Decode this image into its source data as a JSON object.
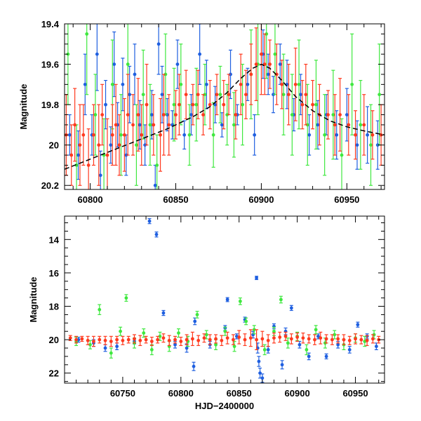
{
  "colors": {
    "blue": "#1f5fe0",
    "green": "#3fe83f",
    "red": "#ff3a1f",
    "model": "#000000",
    "frame": "#000000"
  },
  "chart_data": [
    {
      "type": "scatter",
      "panel": "top",
      "title": "",
      "xlabel": "",
      "ylabel": "Magnitude",
      "xlim": [
        60785,
        60972
      ],
      "ylim": [
        20.22,
        19.4
      ],
      "y_inverted": true,
      "xticks": [
        60800,
        60850,
        60900,
        60950
      ],
      "xtick_labels": [
        "60800",
        "60850",
        "60900",
        "60950"
      ],
      "yticks": [
        19.4,
        19.6,
        19.8,
        20.0,
        20.2
      ],
      "ytick_labels": [
        "19.4",
        "19.6",
        "19.8",
        "20",
        "20.2"
      ],
      "error_bars": true,
      "series": [
        {
          "name": "blue",
          "color": "#1f5fe0",
          "x": [
            60788,
            60793,
            60797,
            60801,
            60804,
            60806,
            60809,
            60812,
            60814,
            60816,
            60819,
            60821,
            60823,
            60826,
            60829,
            60832,
            60836,
            60838,
            60840,
            60842,
            60845,
            60848,
            60851,
            60855,
            60859,
            60864,
            60868,
            60873,
            60877,
            60882,
            60886,
            60892,
            60896,
            60901,
            60904,
            60907,
            60911,
            60915,
            60919,
            60923,
            60928,
            60933,
            60938,
            60944,
            60950,
            60956,
            60962,
            60968
          ],
          "y": [
            19.95,
            20.05,
            19.7,
            19.95,
            19.55,
            20.15,
            19.8,
            20.0,
            19.6,
            19.9,
            19.7,
            20.05,
            19.75,
            19.65,
            19.9,
            20.0,
            19.85,
            20.2,
            19.5,
            19.75,
            19.85,
            19.9,
            19.6,
            19.95,
            19.85,
            19.55,
            19.7,
            19.8,
            19.9,
            19.65,
            19.85,
            19.7,
            19.95,
            19.55,
            19.65,
            19.75,
            19.6,
            19.7,
            19.85,
            19.75,
            19.95,
            19.9,
            19.85,
            19.95,
            19.85,
            20.0,
            19.95,
            20.0
          ],
          "err": [
            0.1,
            0.12,
            0.15,
            0.1,
            0.18,
            0.12,
            0.12,
            0.09,
            0.16,
            0.11,
            0.13,
            0.1,
            0.14,
            0.15,
            0.12,
            0.1,
            0.12,
            0.1,
            0.15,
            0.14,
            0.08,
            0.07,
            0.12,
            0.07,
            0.1,
            0.15,
            0.12,
            0.09,
            0.06,
            0.12,
            0.05,
            0.08,
            0.1,
            0.12,
            0.1,
            0.09,
            0.1,
            0.12,
            0.08,
            0.1,
            0.1,
            0.12,
            0.1,
            0.12,
            0.13,
            0.12,
            0.14,
            0.12
          ]
        },
        {
          "name": "green",
          "color": "#3fe83f",
          "x": [
            60787,
            60792,
            60798,
            60803,
            60808,
            60813,
            60818,
            60822,
            60827,
            60831,
            60835,
            60839,
            60844,
            60849,
            60853,
            60858,
            60862,
            60867,
            60872,
            60876,
            60880,
            60884,
            60889,
            60894,
            60898,
            60903,
            60908,
            60913,
            60918,
            60922,
            60927,
            60932,
            60937,
            60942,
            60947,
            60953,
            60958,
            60964,
            60969
          ],
          "y": [
            19.55,
            20.1,
            19.45,
            19.85,
            20.05,
            19.7,
            19.95,
            19.6,
            20.0,
            19.75,
            19.9,
            20.1,
            19.65,
            19.8,
            19.7,
            19.95,
            19.8,
            19.75,
            19.95,
            19.75,
            19.85,
            19.9,
            19.8,
            19.65,
            19.6,
            19.45,
            19.55,
            19.75,
            19.85,
            19.7,
            19.9,
            19.8,
            19.95,
            19.85,
            20.05,
            19.7,
            19.9,
            20.0,
            19.75
          ],
          "err": [
            0.25,
            0.2,
            0.3,
            0.2,
            0.18,
            0.22,
            0.2,
            0.25,
            0.2,
            0.22,
            0.2,
            0.15,
            0.2,
            0.18,
            0.2,
            0.15,
            0.18,
            0.15,
            0.16,
            0.14,
            0.15,
            0.16,
            0.2,
            0.22,
            0.25,
            0.22,
            0.2,
            0.2,
            0.2,
            0.22,
            0.2,
            0.22,
            0.2,
            0.22,
            0.18,
            0.25,
            0.22,
            0.2,
            0.25
          ]
        },
        {
          "name": "red",
          "color": "#ff3a1f",
          "x": [
            60786,
            60789,
            60791,
            60794,
            60796,
            60799,
            60802,
            60805,
            60807,
            60810,
            60813,
            60815,
            60817,
            60820,
            60822,
            60825,
            60828,
            60830,
            60833,
            60837,
            60841,
            60843,
            60846,
            60850,
            60852,
            60856,
            60860,
            60863,
            60866,
            60870,
            60874,
            60878,
            60881,
            60885,
            60888,
            60891,
            60894,
            60897,
            60900,
            60902,
            60905,
            60909,
            60912,
            60916,
            60920,
            60924,
            60926,
            60930,
            60934,
            60939,
            60943,
            60946,
            60951,
            60955,
            60960,
            60965,
            60970
          ],
          "y": [
            19.95,
            20.05,
            19.9,
            20.0,
            19.95,
            20.1,
            19.95,
            20.0,
            19.85,
            20.05,
            19.95,
            19.9,
            20.0,
            19.95,
            19.85,
            19.9,
            19.85,
            19.95,
            19.8,
            19.9,
            19.95,
            19.85,
            19.9,
            19.85,
            19.8,
            19.75,
            19.8,
            19.75,
            19.85,
            19.8,
            19.75,
            19.8,
            19.75,
            19.85,
            19.7,
            19.75,
            19.65,
            19.6,
            19.55,
            19.6,
            19.6,
            19.65,
            19.7,
            19.75,
            19.7,
            19.8,
            19.75,
            19.8,
            19.85,
            19.85,
            19.9,
            19.85,
            19.9,
            19.95,
            19.9,
            19.95,
            19.95
          ],
          "err": [
            0.2,
            0.15,
            0.18,
            0.2,
            0.15,
            0.18,
            0.15,
            0.2,
            0.15,
            0.18,
            0.15,
            0.2,
            0.15,
            0.18,
            0.2,
            0.15,
            0.18,
            0.15,
            0.2,
            0.15,
            0.18,
            0.2,
            0.15,
            0.12,
            0.15,
            0.12,
            0.1,
            0.12,
            0.1,
            0.12,
            0.1,
            0.12,
            0.1,
            0.12,
            0.15,
            0.12,
            0.15,
            0.18,
            0.2,
            0.15,
            0.12,
            0.15,
            0.12,
            0.15,
            0.18,
            0.12,
            0.15,
            0.12,
            0.15,
            0.12,
            0.15,
            0.18,
            0.15,
            0.12,
            0.15,
            0.12,
            0.15
          ]
        }
      ],
      "model_curve": {
        "name": "model",
        "color": "#000000",
        "style": "dashed",
        "x": [
          60785,
          60800,
          60815,
          60830,
          60845,
          60860,
          60870,
          60880,
          60888,
          60895,
          60900,
          60905,
          60912,
          60920,
          60930,
          60940,
          60950,
          60960,
          60972
        ],
        "y": [
          20.12,
          20.07,
          20.02,
          19.97,
          19.92,
          19.86,
          19.81,
          19.74,
          19.67,
          19.62,
          19.6,
          19.62,
          19.68,
          19.76,
          19.83,
          19.88,
          19.91,
          19.93,
          19.95
        ]
      }
    },
    {
      "type": "scatter",
      "panel": "bottom",
      "title": "",
      "xlabel": "HJD−2400000",
      "ylabel": "Magnitude",
      "xlim": [
        60700,
        60975
      ],
      "ylim": [
        22.6,
        12.6
      ],
      "y_inverted": true,
      "xticks": [
        60750,
        60800,
        60850,
        60900,
        60950
      ],
      "xtick_labels": [
        "60750",
        "60800",
        "60850",
        "60900",
        "60950"
      ],
      "yticks": [
        14,
        16,
        18,
        20,
        22
      ],
      "ytick_labels": [
        "14",
        "16",
        "18",
        "20",
        "22"
      ],
      "error_bars": true,
      "series": [
        {
          "name": "blue",
          "color": "#1f5fe0",
          "x": [
            60712,
            60725,
            60735,
            60745,
            60760,
            60773,
            60779,
            60785,
            60795,
            60805,
            60811,
            60812,
            60825,
            60838,
            60840,
            60848,
            60855,
            60862,
            60865,
            60866,
            60867,
            60868,
            60870,
            60875,
            60880,
            60887,
            60890,
            60895,
            60902,
            60910,
            60918,
            60925,
            60935,
            60945,
            60952,
            60960,
            60968
          ],
          "y": [
            20.0,
            20.2,
            20.5,
            20.4,
            20.1,
            12.9,
            13.7,
            18.4,
            20.3,
            20.5,
            21.6,
            18.9,
            20.3,
            19.3,
            17.6,
            19.8,
            18.8,
            19.7,
            16.3,
            20.5,
            21.3,
            22.0,
            22.3,
            20.6,
            19.2,
            21.5,
            19.5,
            18.1,
            20.3,
            21.0,
            19.8,
            21.0,
            20.3,
            20.6,
            19.1,
            19.8,
            20.4
          ],
          "err": [
            0.15,
            0.2,
            0.2,
            0.2,
            0.15,
            0.15,
            0.15,
            0.15,
            0.2,
            0.25,
            0.25,
            0.2,
            0.2,
            0.15,
            0.12,
            0.15,
            0.15,
            0.2,
            0.1,
            0.3,
            0.3,
            0.3,
            0.25,
            0.2,
            0.15,
            0.25,
            0.2,
            0.15,
            0.2,
            0.2,
            0.15,
            0.15,
            0.2,
            0.2,
            0.15,
            0.15,
            0.2
          ]
        },
        {
          "name": "green",
          "color": "#3fe83f",
          "x": [
            60710,
            60722,
            60730,
            60740,
            60748,
            60753,
            60760,
            60768,
            60775,
            60782,
            60790,
            60798,
            60806,
            60814,
            60822,
            60830,
            60838,
            60846,
            60851,
            60856,
            60863,
            60872,
            60880,
            60886,
            60892,
            60900,
            60908,
            60916,
            60924,
            60932,
            60940,
            60950,
            60958,
            60966
          ],
          "y": [
            20.1,
            20.3,
            18.2,
            20.8,
            19.5,
            17.5,
            20.2,
            19.6,
            20.6,
            19.8,
            20.4,
            19.6,
            20.1,
            18.5,
            19.7,
            20.3,
            19.5,
            20.4,
            17.7,
            18.9,
            19.4,
            20.6,
            19.5,
            17.6,
            20.2,
            19.8,
            20.6,
            19.4,
            20.2,
            19.7,
            20.3,
            19.9,
            20.1,
            19.7
          ],
          "err": [
            0.25,
            0.25,
            0.3,
            0.3,
            0.25,
            0.2,
            0.3,
            0.25,
            0.3,
            0.25,
            0.3,
            0.25,
            0.3,
            0.2,
            0.25,
            0.3,
            0.25,
            0.3,
            0.2,
            0.2,
            0.25,
            0.3,
            0.25,
            0.2,
            0.3,
            0.25,
            0.3,
            0.25,
            0.3,
            0.25,
            0.3,
            0.25,
            0.3,
            0.25
          ]
        },
        {
          "name": "red",
          "color": "#ff3a1f",
          "x": [
            60705,
            60710,
            60715,
            60720,
            60725,
            60730,
            60735,
            60740,
            60745,
            60750,
            60755,
            60760,
            60765,
            60770,
            60775,
            60780,
            60785,
            60790,
            60795,
            60800,
            60805,
            60810,
            60815,
            60820,
            60825,
            60830,
            60835,
            60840,
            60845,
            60850,
            60855,
            60860,
            60865,
            60870,
            60875,
            60880,
            60885,
            60890,
            60895,
            60900,
            60905,
            60910,
            60915,
            60920,
            60925,
            60930,
            60935,
            60940,
            60945,
            60950,
            60955,
            60960,
            60965,
            60970
          ],
          "y": [
            19.9,
            20.0,
            19.95,
            20.05,
            20.1,
            20.0,
            20.05,
            20.1,
            20.0,
            20.05,
            20.0,
            19.95,
            20.05,
            20.0,
            20.1,
            20.0,
            19.9,
            20.05,
            20.0,
            20.1,
            20.0,
            19.95,
            20.05,
            19.9,
            20.0,
            19.95,
            20.05,
            19.9,
            20.0,
            19.85,
            20.0,
            19.9,
            20.0,
            19.95,
            20.05,
            19.9,
            19.85,
            19.8,
            19.95,
            19.85,
            19.9,
            19.95,
            20.0,
            19.9,
            19.95,
            20.0,
            19.95,
            20.0,
            20.05,
            19.95,
            20.0,
            20.05,
            19.95,
            20.0
          ],
          "err": [
            0.15,
            0.2,
            0.15,
            0.25,
            0.3,
            0.2,
            0.25,
            0.3,
            0.2,
            0.25,
            0.2,
            0.25,
            0.3,
            0.2,
            0.25,
            0.2,
            0.25,
            0.3,
            0.2,
            0.25,
            0.3,
            0.4,
            0.3,
            0.25,
            0.3,
            0.25,
            0.3,
            0.35,
            0.3,
            0.4,
            0.35,
            0.5,
            0.6,
            0.45,
            0.35,
            0.3,
            0.3,
            0.25,
            0.3,
            0.25,
            0.3,
            0.25,
            0.3,
            0.35,
            0.25,
            0.3,
            0.25,
            0.3,
            0.25,
            0.3,
            0.25,
            0.3,
            0.25,
            0.2
          ]
        }
      ]
    }
  ]
}
